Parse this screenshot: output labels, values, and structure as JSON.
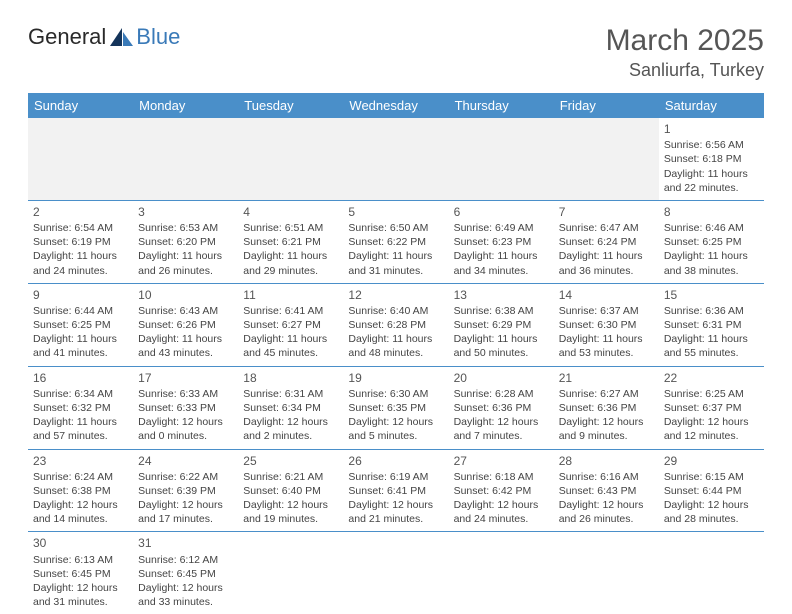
{
  "brand": {
    "part1": "General",
    "part2": "Blue"
  },
  "title": "March 2025",
  "location": "Sanliurfa, Turkey",
  "header_bg": "#4a8fc9",
  "days_of_week": [
    "Sunday",
    "Monday",
    "Tuesday",
    "Wednesday",
    "Thursday",
    "Friday",
    "Saturday"
  ],
  "cells": [
    {
      "r": 0,
      "c": 0,
      "blank": true
    },
    {
      "r": 0,
      "c": 1,
      "blank": true
    },
    {
      "r": 0,
      "c": 2,
      "blank": true
    },
    {
      "r": 0,
      "c": 3,
      "blank": true
    },
    {
      "r": 0,
      "c": 4,
      "blank": true
    },
    {
      "r": 0,
      "c": 5,
      "blank": true
    },
    {
      "r": 0,
      "c": 6,
      "day": "1",
      "sunrise": "Sunrise: 6:56 AM",
      "sunset": "Sunset: 6:18 PM",
      "daylight1": "Daylight: 11 hours",
      "daylight2": "and 22 minutes."
    },
    {
      "r": 1,
      "c": 0,
      "day": "2",
      "sunrise": "Sunrise: 6:54 AM",
      "sunset": "Sunset: 6:19 PM",
      "daylight1": "Daylight: 11 hours",
      "daylight2": "and 24 minutes."
    },
    {
      "r": 1,
      "c": 1,
      "day": "3",
      "sunrise": "Sunrise: 6:53 AM",
      "sunset": "Sunset: 6:20 PM",
      "daylight1": "Daylight: 11 hours",
      "daylight2": "and 26 minutes."
    },
    {
      "r": 1,
      "c": 2,
      "day": "4",
      "sunrise": "Sunrise: 6:51 AM",
      "sunset": "Sunset: 6:21 PM",
      "daylight1": "Daylight: 11 hours",
      "daylight2": "and 29 minutes."
    },
    {
      "r": 1,
      "c": 3,
      "day": "5",
      "sunrise": "Sunrise: 6:50 AM",
      "sunset": "Sunset: 6:22 PM",
      "daylight1": "Daylight: 11 hours",
      "daylight2": "and 31 minutes."
    },
    {
      "r": 1,
      "c": 4,
      "day": "6",
      "sunrise": "Sunrise: 6:49 AM",
      "sunset": "Sunset: 6:23 PM",
      "daylight1": "Daylight: 11 hours",
      "daylight2": "and 34 minutes."
    },
    {
      "r": 1,
      "c": 5,
      "day": "7",
      "sunrise": "Sunrise: 6:47 AM",
      "sunset": "Sunset: 6:24 PM",
      "daylight1": "Daylight: 11 hours",
      "daylight2": "and 36 minutes."
    },
    {
      "r": 1,
      "c": 6,
      "day": "8",
      "sunrise": "Sunrise: 6:46 AM",
      "sunset": "Sunset: 6:25 PM",
      "daylight1": "Daylight: 11 hours",
      "daylight2": "and 38 minutes."
    },
    {
      "r": 2,
      "c": 0,
      "day": "9",
      "sunrise": "Sunrise: 6:44 AM",
      "sunset": "Sunset: 6:25 PM",
      "daylight1": "Daylight: 11 hours",
      "daylight2": "and 41 minutes."
    },
    {
      "r": 2,
      "c": 1,
      "day": "10",
      "sunrise": "Sunrise: 6:43 AM",
      "sunset": "Sunset: 6:26 PM",
      "daylight1": "Daylight: 11 hours",
      "daylight2": "and 43 minutes."
    },
    {
      "r": 2,
      "c": 2,
      "day": "11",
      "sunrise": "Sunrise: 6:41 AM",
      "sunset": "Sunset: 6:27 PM",
      "daylight1": "Daylight: 11 hours",
      "daylight2": "and 45 minutes."
    },
    {
      "r": 2,
      "c": 3,
      "day": "12",
      "sunrise": "Sunrise: 6:40 AM",
      "sunset": "Sunset: 6:28 PM",
      "daylight1": "Daylight: 11 hours",
      "daylight2": "and 48 minutes."
    },
    {
      "r": 2,
      "c": 4,
      "day": "13",
      "sunrise": "Sunrise: 6:38 AM",
      "sunset": "Sunset: 6:29 PM",
      "daylight1": "Daylight: 11 hours",
      "daylight2": "and 50 minutes."
    },
    {
      "r": 2,
      "c": 5,
      "day": "14",
      "sunrise": "Sunrise: 6:37 AM",
      "sunset": "Sunset: 6:30 PM",
      "daylight1": "Daylight: 11 hours",
      "daylight2": "and 53 minutes."
    },
    {
      "r": 2,
      "c": 6,
      "day": "15",
      "sunrise": "Sunrise: 6:36 AM",
      "sunset": "Sunset: 6:31 PM",
      "daylight1": "Daylight: 11 hours",
      "daylight2": "and 55 minutes."
    },
    {
      "r": 3,
      "c": 0,
      "day": "16",
      "sunrise": "Sunrise: 6:34 AM",
      "sunset": "Sunset: 6:32 PM",
      "daylight1": "Daylight: 11 hours",
      "daylight2": "and 57 minutes."
    },
    {
      "r": 3,
      "c": 1,
      "day": "17",
      "sunrise": "Sunrise: 6:33 AM",
      "sunset": "Sunset: 6:33 PM",
      "daylight1": "Daylight: 12 hours",
      "daylight2": "and 0 minutes."
    },
    {
      "r": 3,
      "c": 2,
      "day": "18",
      "sunrise": "Sunrise: 6:31 AM",
      "sunset": "Sunset: 6:34 PM",
      "daylight1": "Daylight: 12 hours",
      "daylight2": "and 2 minutes."
    },
    {
      "r": 3,
      "c": 3,
      "day": "19",
      "sunrise": "Sunrise: 6:30 AM",
      "sunset": "Sunset: 6:35 PM",
      "daylight1": "Daylight: 12 hours",
      "daylight2": "and 5 minutes."
    },
    {
      "r": 3,
      "c": 4,
      "day": "20",
      "sunrise": "Sunrise: 6:28 AM",
      "sunset": "Sunset: 6:36 PM",
      "daylight1": "Daylight: 12 hours",
      "daylight2": "and 7 minutes."
    },
    {
      "r": 3,
      "c": 5,
      "day": "21",
      "sunrise": "Sunrise: 6:27 AM",
      "sunset": "Sunset: 6:36 PM",
      "daylight1": "Daylight: 12 hours",
      "daylight2": "and 9 minutes."
    },
    {
      "r": 3,
      "c": 6,
      "day": "22",
      "sunrise": "Sunrise: 6:25 AM",
      "sunset": "Sunset: 6:37 PM",
      "daylight1": "Daylight: 12 hours",
      "daylight2": "and 12 minutes."
    },
    {
      "r": 4,
      "c": 0,
      "day": "23",
      "sunrise": "Sunrise: 6:24 AM",
      "sunset": "Sunset: 6:38 PM",
      "daylight1": "Daylight: 12 hours",
      "daylight2": "and 14 minutes."
    },
    {
      "r": 4,
      "c": 1,
      "day": "24",
      "sunrise": "Sunrise: 6:22 AM",
      "sunset": "Sunset: 6:39 PM",
      "daylight1": "Daylight: 12 hours",
      "daylight2": "and 17 minutes."
    },
    {
      "r": 4,
      "c": 2,
      "day": "25",
      "sunrise": "Sunrise: 6:21 AM",
      "sunset": "Sunset: 6:40 PM",
      "daylight1": "Daylight: 12 hours",
      "daylight2": "and 19 minutes."
    },
    {
      "r": 4,
      "c": 3,
      "day": "26",
      "sunrise": "Sunrise: 6:19 AM",
      "sunset": "Sunset: 6:41 PM",
      "daylight1": "Daylight: 12 hours",
      "daylight2": "and 21 minutes."
    },
    {
      "r": 4,
      "c": 4,
      "day": "27",
      "sunrise": "Sunrise: 6:18 AM",
      "sunset": "Sunset: 6:42 PM",
      "daylight1": "Daylight: 12 hours",
      "daylight2": "and 24 minutes."
    },
    {
      "r": 4,
      "c": 5,
      "day": "28",
      "sunrise": "Sunrise: 6:16 AM",
      "sunset": "Sunset: 6:43 PM",
      "daylight1": "Daylight: 12 hours",
      "daylight2": "and 26 minutes."
    },
    {
      "r": 4,
      "c": 6,
      "day": "29",
      "sunrise": "Sunrise: 6:15 AM",
      "sunset": "Sunset: 6:44 PM",
      "daylight1": "Daylight: 12 hours",
      "daylight2": "and 28 minutes."
    },
    {
      "r": 5,
      "c": 0,
      "day": "30",
      "sunrise": "Sunrise: 6:13 AM",
      "sunset": "Sunset: 6:45 PM",
      "daylight1": "Daylight: 12 hours",
      "daylight2": "and 31 minutes."
    },
    {
      "r": 5,
      "c": 1,
      "day": "31",
      "sunrise": "Sunrise: 6:12 AM",
      "sunset": "Sunset: 6:45 PM",
      "daylight1": "Daylight: 12 hours",
      "daylight2": "and 33 minutes."
    },
    {
      "r": 5,
      "c": 2,
      "blank": true,
      "trailing": true
    },
    {
      "r": 5,
      "c": 3,
      "blank": true,
      "trailing": true
    },
    {
      "r": 5,
      "c": 4,
      "blank": true,
      "trailing": true
    },
    {
      "r": 5,
      "c": 5,
      "blank": true,
      "trailing": true
    },
    {
      "r": 5,
      "c": 6,
      "blank": true,
      "trailing": true
    }
  ]
}
